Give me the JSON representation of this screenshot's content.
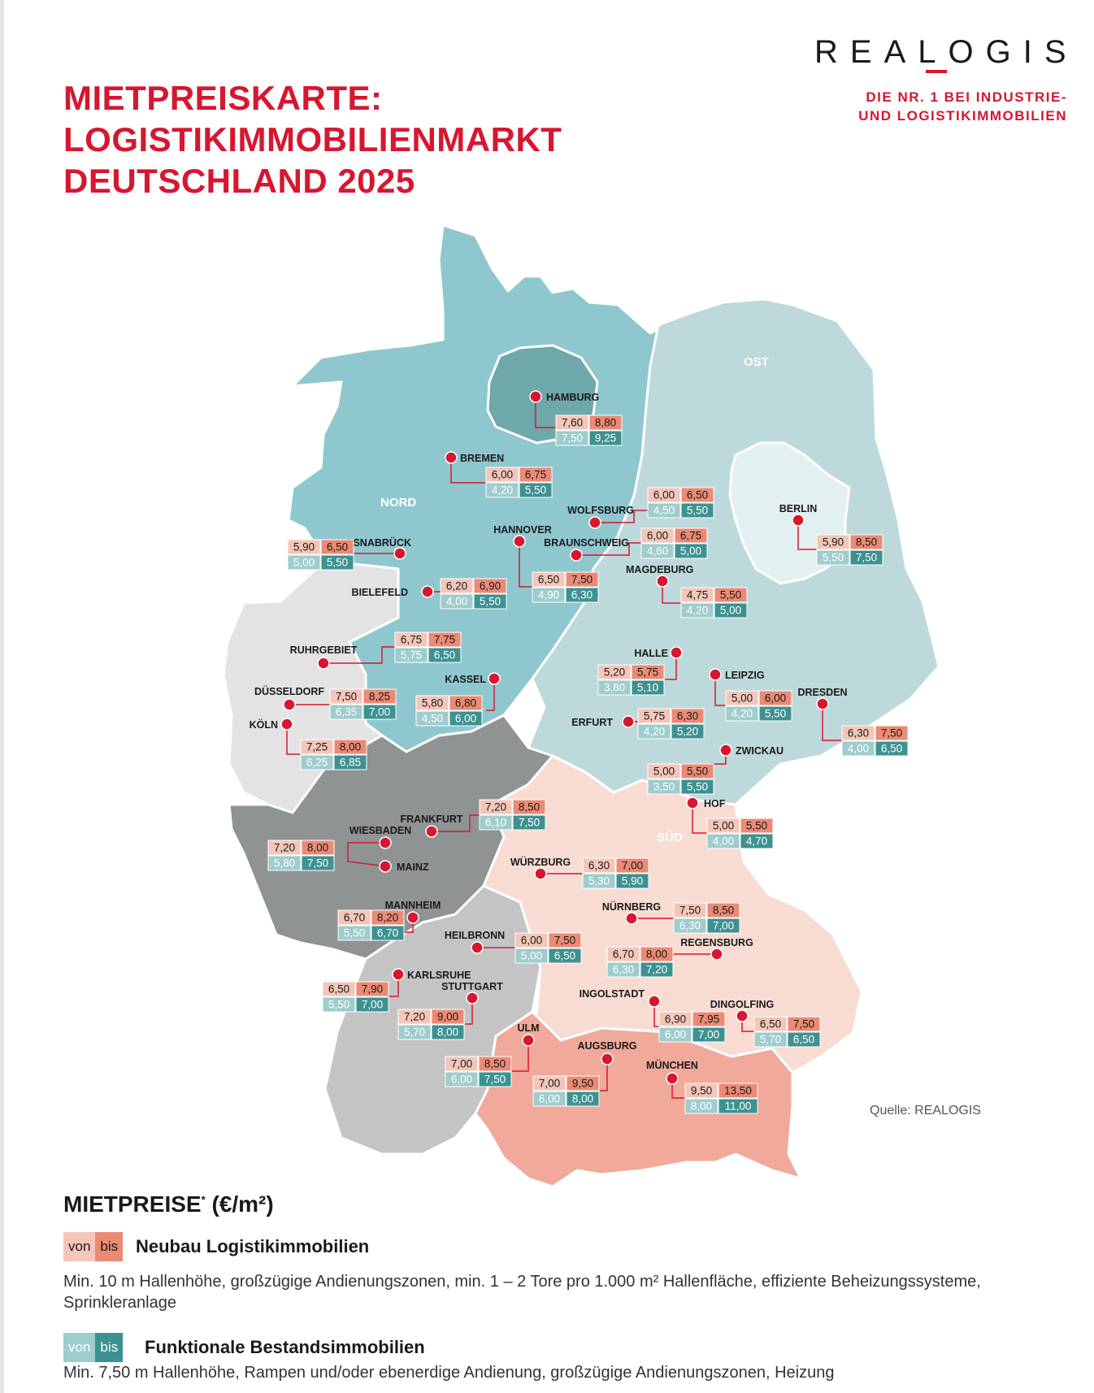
{
  "title": [
    "MIETPREISKARTE:",
    "LOGISTIKIMMOBILIENMARKT",
    "DEUTSCHLAND 2025"
  ],
  "logo": {
    "name": "REALOGIS",
    "claim": [
      "DIE NR. 1 BEI INDUSTRIE-",
      "UND LOGISTIKIMMOBILIEN"
    ]
  },
  "source": "Quelle: REALOGIS",
  "colors": {
    "accent": "#d6172f",
    "nord": "#8fc7cf",
    "hamburg": "#6ea8aa",
    "ost": "#bdd9db",
    "berlin": "#e3f0f1",
    "sued": "#f8dcd3",
    "muenchen": "#f0a99a",
    "west": "#e3e3e3",
    "mitte": "#8f9394",
    "suedwest": "#c4c4c4",
    "neu_von": "#f4c6b9",
    "neu_bis": "#eb8a75",
    "best_von": "#9fcccd",
    "best_bis": "#3e9191"
  },
  "regions": {
    "nord": "NORD",
    "ost": "OST",
    "sued": "SÜD"
  },
  "cities": [
    {
      "name": "HAMBURG",
      "neu": [
        "7,60",
        "8,80"
      ],
      "best": [
        "7,50",
        "9,25"
      ]
    },
    {
      "name": "BREMEN",
      "neu": [
        "6,00",
        "6,75"
      ],
      "best": [
        "4,20",
        "5,50"
      ]
    },
    {
      "name": "WOLFSBURG",
      "neu": [
        "6,00",
        "6,50"
      ],
      "best": [
        "4,50",
        "5,50"
      ]
    },
    {
      "name": "BRAUNSCHWEIG",
      "neu": [
        "6,00",
        "6,75"
      ],
      "best": [
        "4,60",
        "5,00"
      ]
    },
    {
      "name": "HANNOVER",
      "neu": [
        "6,50",
        "7,50"
      ],
      "best": [
        "4,90",
        "6,30"
      ]
    },
    {
      "name": "OSNABRÜCK",
      "neu": [
        "5,90",
        "6,50"
      ],
      "best": [
        "5,00",
        "5,50"
      ]
    },
    {
      "name": "BIELEFELD",
      "neu": [
        "6,20",
        "6,90"
      ],
      "best": [
        "4,00",
        "5,50"
      ]
    },
    {
      "name": "MAGDEBURG",
      "neu": [
        "4,75",
        "5,50"
      ],
      "best": [
        "4,20",
        "5,00"
      ]
    },
    {
      "name": "BERLIN",
      "neu": [
        "5,90",
        "8,50"
      ],
      "best": [
        "5,50",
        "7,50"
      ]
    },
    {
      "name": "RUHRGEBIET",
      "neu": [
        "6,75",
        "7,75"
      ],
      "best": [
        "5,75",
        "6,50"
      ]
    },
    {
      "name": "HALLE",
      "neu": [
        "5,20",
        "5,75"
      ],
      "best": [
        "3,80",
        "5,10"
      ]
    },
    {
      "name": "LEIPZIG",
      "neu": [
        "5,00",
        "6,00"
      ],
      "best": [
        "4,20",
        "5,50"
      ]
    },
    {
      "name": "DRESDEN",
      "neu": [
        "6,30",
        "7,50"
      ],
      "best": [
        "4,00",
        "6,50"
      ]
    },
    {
      "name": "KASSEL",
      "neu": [
        "5,80",
        "6,80"
      ],
      "best": [
        "4,50",
        "6,00"
      ]
    },
    {
      "name": "DÜSSELDORF",
      "neu": [
        "7,50",
        "8,25"
      ],
      "best": [
        "6,35",
        "7,00"
      ]
    },
    {
      "name": "KÖLN",
      "neu": [
        "7,25",
        "8,00"
      ],
      "best": [
        "6,25",
        "6,85"
      ]
    },
    {
      "name": "ERFURT",
      "neu": [
        "5,75",
        "6,30"
      ],
      "best": [
        "4,20",
        "5,20"
      ]
    },
    {
      "name": "ZWICKAU",
      "neu": [
        "5,00",
        "5,50"
      ],
      "best": [
        "3,50",
        "5,50"
      ]
    },
    {
      "name": "HOF",
      "neu": [
        "5,00",
        "5,50"
      ],
      "best": [
        "4,00",
        "4,70"
      ]
    },
    {
      "name": "FRANKFURT",
      "neu": [
        "7,20",
        "8,50"
      ],
      "best": [
        "6,10",
        "7,50"
      ]
    },
    {
      "name": "WIESBADEN",
      "neu": [
        "7,20",
        "8,00"
      ],
      "best": [
        "5,80",
        "7,50"
      ]
    },
    {
      "name": "MAINZ"
    },
    {
      "name": "WÜRZBURG",
      "neu": [
        "6,30",
        "7,00"
      ],
      "best": [
        "5,30",
        "5,90"
      ]
    },
    {
      "name": "NÜRNBERG",
      "neu": [
        "7,50",
        "8,50"
      ],
      "best": [
        "6,30",
        "7,00"
      ]
    },
    {
      "name": "MANNHEIM",
      "neu": [
        "6,70",
        "8,20"
      ],
      "best": [
        "5,50",
        "6,70"
      ]
    },
    {
      "name": "HEILBRONN",
      "neu": [
        "6,00",
        "7,50"
      ],
      "best": [
        "5,00",
        "6,50"
      ]
    },
    {
      "name": "REGENSBURG",
      "neu": [
        "6,70",
        "8,00"
      ],
      "best": [
        "6,30",
        "7,20"
      ]
    },
    {
      "name": "KARLSRUHE",
      "neu": [
        "6,50",
        "7,90"
      ],
      "best": [
        "5,50",
        "7,00"
      ]
    },
    {
      "name": "STUTTGART",
      "neu": [
        "7,20",
        "9,00"
      ],
      "best": [
        "5,70",
        "8,00"
      ]
    },
    {
      "name": "INGOLSTADT",
      "neu": [
        "6,90",
        "7,95"
      ],
      "best": [
        "6,00",
        "7,00"
      ]
    },
    {
      "name": "DINGOLFING",
      "neu": [
        "6,50",
        "7,50"
      ],
      "best": [
        "5,70",
        "6,50"
      ]
    },
    {
      "name": "ULM",
      "neu": [
        "7,00",
        "8,50"
      ],
      "best": [
        "6,00",
        "7,50"
      ]
    },
    {
      "name": "AUGSBURG",
      "neu": [
        "7,00",
        "9,50"
      ],
      "best": [
        "6,00",
        "8,00"
      ]
    },
    {
      "name": "MÜNCHEN",
      "neu": [
        "9,50",
        "13,50"
      ],
      "best": [
        "8,00",
        "11,00"
      ]
    }
  ],
  "legend": {
    "title": "MIETPREISE",
    "title_mark": "*",
    "unit": "(€/m²)",
    "von": "von",
    "bis": "bis",
    "neubau": {
      "title": "Neubau Logistikimmobilien",
      "text": "Min. 10 m Hallenhöhe, großzügige Andienungszonen, min. 1 – 2 Tore pro 1.000 m² Hallenfläche, effiziente Beheizungssysteme, Sprinkleranlage"
    },
    "bestand": {
      "title": "Funktionale Bestandsimmobilien",
      "text": "Min. 7,50 m Hallenhöhe, Rampen und/oder ebenerdige Andienung, großzügige Andienungszonen, Heizung"
    }
  }
}
